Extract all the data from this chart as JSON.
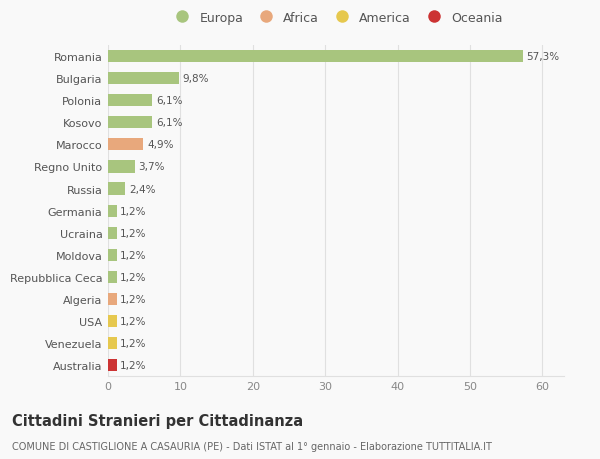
{
  "countries": [
    "Romania",
    "Bulgaria",
    "Polonia",
    "Kosovo",
    "Marocco",
    "Regno Unito",
    "Russia",
    "Germania",
    "Ucraina",
    "Moldova",
    "Repubblica Ceca",
    "Algeria",
    "USA",
    "Venezuela",
    "Australia"
  ],
  "values": [
    57.3,
    9.8,
    6.1,
    6.1,
    4.9,
    3.7,
    2.4,
    1.2,
    1.2,
    1.2,
    1.2,
    1.2,
    1.2,
    1.2,
    1.2
  ],
  "labels": [
    "57,3%",
    "9,8%",
    "6,1%",
    "6,1%",
    "4,9%",
    "3,7%",
    "2,4%",
    "1,2%",
    "1,2%",
    "1,2%",
    "1,2%",
    "1,2%",
    "1,2%",
    "1,2%",
    "1,2%"
  ],
  "colors": [
    "#a8c57e",
    "#a8c57e",
    "#a8c57e",
    "#a8c57e",
    "#e8a87c",
    "#a8c57e",
    "#a8c57e",
    "#a8c57e",
    "#a8c57e",
    "#a8c57e",
    "#a8c57e",
    "#e8a87c",
    "#e6c84e",
    "#e6c84e",
    "#cc3333"
  ],
  "legend_labels": [
    "Europa",
    "Africa",
    "America",
    "Oceania"
  ],
  "legend_colors": [
    "#a8c57e",
    "#e8a87c",
    "#e6c84e",
    "#cc3333"
  ],
  "title": "Cittadini Stranieri per Cittadinanza",
  "subtitle": "COMUNE DI CASTIGLIONE A CASAURIA (PE) - Dati ISTAT al 1° gennaio - Elaborazione TUTTITALIA.IT",
  "xlim": [
    0,
    63
  ],
  "xticks": [
    0,
    10,
    20,
    30,
    40,
    50,
    60
  ],
  "bg_color": "#f9f9f9",
  "grid_color": "#e0e0e0",
  "bar_height": 0.55
}
